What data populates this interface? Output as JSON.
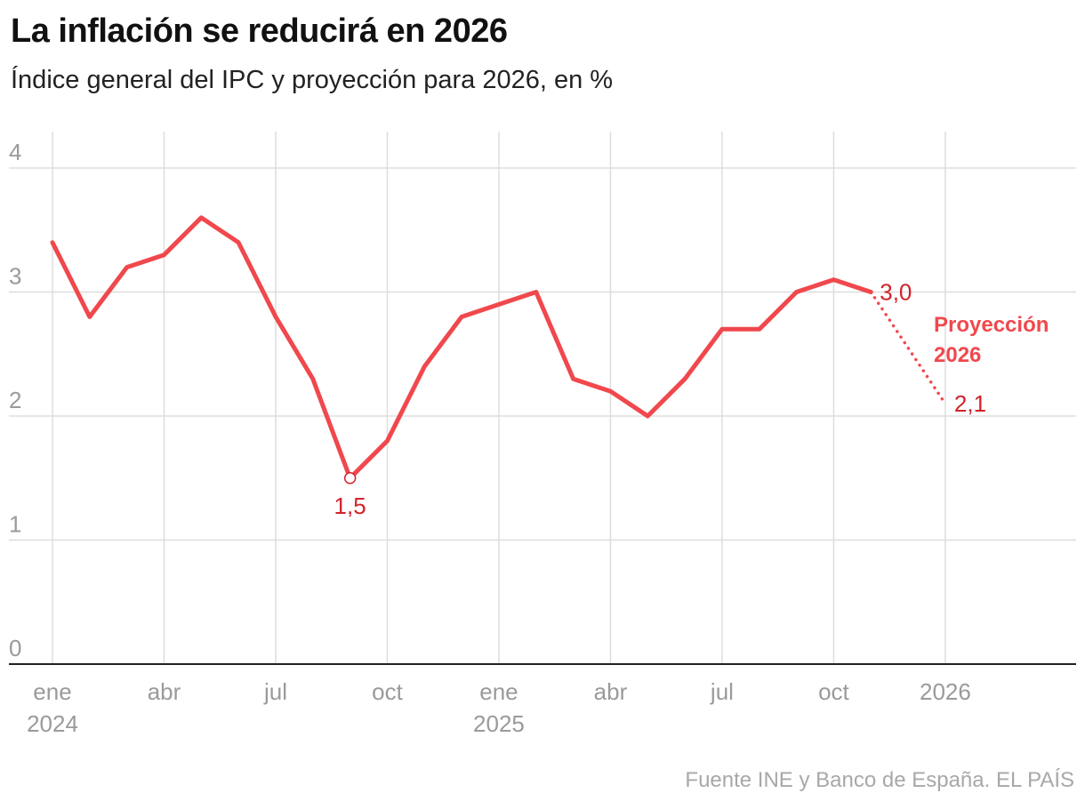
{
  "title": "La inflación se reducirá en 2026",
  "subtitle": "Índice general del IPC y proyección para 2026, en %",
  "source": "Fuente INE y Banco de España. EL PAÍS",
  "colors": {
    "line": "#f0484d",
    "label": "#d1232a",
    "grid": "#dddddd",
    "axis": "#222222",
    "tick": "#9a9a9a"
  },
  "chart_data": {
    "type": "line",
    "title": "La inflación se reducirá en 2026",
    "ylabel": "%",
    "ylim": [
      0,
      4
    ],
    "yticks": [
      0,
      1,
      2,
      3,
      4
    ],
    "xlim": [
      0,
      27
    ],
    "grid": true,
    "x_ticks": [
      {
        "month": 0,
        "label": "ene",
        "year": "2024"
      },
      {
        "month": 3,
        "label": "abr",
        "year": ""
      },
      {
        "month": 6,
        "label": "jul",
        "year": ""
      },
      {
        "month": 9,
        "label": "oct",
        "year": ""
      },
      {
        "month": 12,
        "label": "ene",
        "year": "2025"
      },
      {
        "month": 15,
        "label": "abr",
        "year": ""
      },
      {
        "month": 18,
        "label": "jul",
        "year": ""
      },
      {
        "month": 21,
        "label": "oct",
        "year": ""
      },
      {
        "month": 24,
        "label": "2026",
        "year": ""
      }
    ],
    "series": [
      {
        "name": "IPC",
        "style": "solid",
        "points": [
          {
            "x": 0,
            "y": 3.4
          },
          {
            "x": 1,
            "y": 2.8
          },
          {
            "x": 2,
            "y": 3.2
          },
          {
            "x": 3,
            "y": 3.3
          },
          {
            "x": 4,
            "y": 3.6
          },
          {
            "x": 5,
            "y": 3.4
          },
          {
            "x": 6,
            "y": 2.8
          },
          {
            "x": 7,
            "y": 2.3
          },
          {
            "x": 8,
            "y": 1.5
          },
          {
            "x": 9,
            "y": 1.8
          },
          {
            "x": 10,
            "y": 2.4
          },
          {
            "x": 11,
            "y": 2.8
          },
          {
            "x": 12,
            "y": 2.9
          },
          {
            "x": 13,
            "y": 3.0
          },
          {
            "x": 14,
            "y": 2.3
          },
          {
            "x": 15,
            "y": 2.2
          },
          {
            "x": 16,
            "y": 2.0
          },
          {
            "x": 17,
            "y": 2.3
          },
          {
            "x": 18,
            "y": 2.7
          },
          {
            "x": 19,
            "y": 2.7
          },
          {
            "x": 20,
            "y": 3.0
          },
          {
            "x": 21,
            "y": 3.1
          },
          {
            "x": 22,
            "y": 3.0
          }
        ]
      },
      {
        "name": "Proyección 2026",
        "style": "dotted",
        "points": [
          {
            "x": 22,
            "y": 3.0
          },
          {
            "x": 24,
            "y": 2.1
          }
        ]
      }
    ],
    "annotations": [
      {
        "x": 8,
        "y": 1.5,
        "text": "1,5",
        "position": "below",
        "marker": true
      },
      {
        "x": 22,
        "y": 3.0,
        "text": "3,0",
        "position": "right"
      },
      {
        "x": 24,
        "y": 2.1,
        "text": "2,1",
        "position": "right"
      }
    ],
    "projection_label": [
      "Proyección",
      "2026"
    ]
  }
}
